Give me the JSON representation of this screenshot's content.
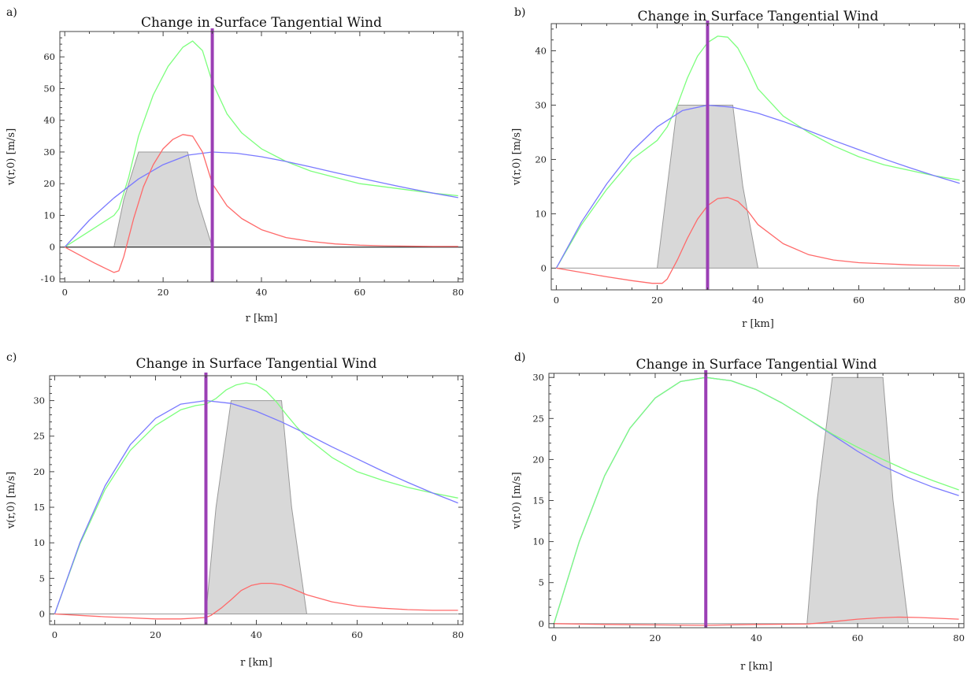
{
  "colors": {
    "green": "#7dff7d",
    "blue": "#7a7aff",
    "red": "#ff6a6a",
    "purple": "#9b3fb5",
    "shade_fill": "#d8d8d8",
    "shade_edge": "#9a9a9a"
  },
  "chart_data": [
    {
      "panel": "a)",
      "type": "line",
      "title": "Change in Surface Tangential Wind",
      "xlabel": "r  [km]",
      "ylabel": "v(r,0)  [m/s]",
      "xlim": [
        -1,
        81
      ],
      "ylim": [
        -11,
        68
      ],
      "xticks": [
        0,
        20,
        40,
        60,
        80
      ],
      "yticks": [
        -10,
        0,
        10,
        20,
        30,
        40,
        50,
        60
      ],
      "vline": 30,
      "zero_line": true,
      "shaded_region": {
        "x": [
          0,
          10,
          12,
          15,
          25,
          27,
          30,
          80
        ],
        "y": [
          0,
          0,
          15,
          30,
          30,
          15,
          0,
          0
        ]
      },
      "series": [
        {
          "color": "green",
          "x": [
            0,
            5,
            10,
            11,
            13,
            15,
            18,
            21,
            24,
            26,
            28,
            30,
            33,
            36,
            40,
            45,
            50,
            55,
            60,
            65,
            70,
            75,
            80
          ],
          "y": [
            0,
            5,
            10,
            12,
            22,
            35,
            48,
            57,
            63,
            65,
            62,
            52,
            42,
            36,
            31,
            27,
            24,
            22,
            20,
            19,
            18,
            17,
            16.2
          ]
        },
        {
          "color": "blue",
          "x": [
            0,
            5,
            10,
            15,
            20,
            25,
            30,
            35,
            40,
            45,
            50,
            55,
            60,
            65,
            70,
            75,
            80
          ],
          "y": [
            0,
            8.5,
            15.5,
            21.5,
            26,
            29,
            30,
            29.6,
            28.5,
            27,
            25.3,
            23.5,
            21.8,
            20.1,
            18.5,
            17,
            15.6
          ]
        },
        {
          "color": "red",
          "x": [
            0,
            3,
            6,
            8,
            10,
            11,
            12,
            14,
            16,
            18,
            20,
            22,
            24,
            26,
            28,
            30,
            33,
            36,
            40,
            45,
            50,
            55,
            60,
            65,
            70,
            75,
            80
          ],
          "y": [
            0,
            -2.5,
            -5,
            -6.5,
            -8,
            -7.5,
            -3,
            9,
            19,
            26,
            31,
            34,
            35.5,
            35,
            30,
            20,
            13,
            9,
            5.5,
            3,
            1.8,
            1,
            0.6,
            0.4,
            0.3,
            0.2,
            0.2
          ]
        }
      ]
    },
    {
      "panel": "b)",
      "type": "line",
      "title": "Change in Surface Tangential Wind",
      "xlabel": "r  [km]",
      "ylabel": "v(r,0)  [m/s]",
      "xlim": [
        -1,
        81
      ],
      "ylim": [
        -4,
        45
      ],
      "xticks": [
        0,
        20,
        40,
        60,
        80
      ],
      "yticks": [
        0,
        10,
        20,
        30,
        40
      ],
      "vline": 30,
      "zero_line": false,
      "shaded_region": {
        "x": [
          0,
          20,
          22,
          24,
          35,
          37,
          40,
          80
        ],
        "y": [
          0,
          0,
          15,
          30,
          30,
          15,
          0,
          0
        ]
      },
      "series": [
        {
          "color": "green",
          "x": [
            0,
            5,
            10,
            15,
            20,
            22,
            24,
            26,
            28,
            30,
            32,
            34,
            36,
            38,
            40,
            45,
            50,
            55,
            60,
            65,
            70,
            75,
            80
          ],
          "y": [
            0,
            8,
            14.5,
            20,
            23.5,
            26,
            30,
            35,
            39,
            41.5,
            42.7,
            42.5,
            40.5,
            37,
            33,
            28,
            25,
            22.5,
            20.5,
            19,
            18,
            17,
            16.2
          ]
        },
        {
          "color": "blue",
          "x": [
            0,
            5,
            10,
            15,
            20,
            25,
            30,
            35,
            40,
            45,
            50,
            55,
            60,
            65,
            70,
            75,
            80
          ],
          "y": [
            0,
            8.5,
            15.5,
            21.5,
            26,
            29,
            30,
            29.6,
            28.5,
            27,
            25.3,
            23.5,
            21.8,
            20.1,
            18.5,
            17,
            15.6
          ]
        },
        {
          "color": "red",
          "x": [
            0,
            5,
            10,
            15,
            19,
            21,
            22,
            24,
            26,
            28,
            30,
            32,
            34,
            36,
            38,
            40,
            45,
            50,
            55,
            60,
            65,
            70,
            75,
            80
          ],
          "y": [
            0,
            -0.8,
            -1.6,
            -2.3,
            -2.8,
            -2.8,
            -2,
            1.5,
            5.5,
            9,
            11.5,
            12.8,
            13,
            12.3,
            10.5,
            8,
            4.5,
            2.5,
            1.5,
            1,
            0.8,
            0.6,
            0.5,
            0.4
          ]
        }
      ]
    },
    {
      "panel": "c)",
      "type": "line",
      "title": "Change in Surface Tangential Wind",
      "xlabel": "r  [km]",
      "ylabel": "v(r,0)  [m/s]",
      "xlim": [
        -1,
        81
      ],
      "ylim": [
        -1.5,
        33.5
      ],
      "xticks": [
        0,
        20,
        40,
        60,
        80
      ],
      "yticks": [
        0,
        5,
        10,
        15,
        20,
        25,
        30
      ],
      "vline": 30,
      "zero_line": false,
      "shaded_region": {
        "x": [
          0,
          30,
          32,
          35,
          45,
          47,
          50,
          80
        ],
        "y": [
          0,
          0,
          15,
          30,
          30,
          15,
          0,
          0
        ]
      },
      "series": [
        {
          "color": "green",
          "x": [
            0,
            5,
            10,
            15,
            20,
            25,
            28,
            30,
            32,
            34,
            36,
            38,
            40,
            42,
            44,
            46,
            48,
            50,
            55,
            60,
            65,
            70,
            75,
            80
          ],
          "y": [
            0,
            9.8,
            17.5,
            23,
            26.5,
            28.7,
            29.3,
            29.5,
            30.3,
            31.5,
            32.2,
            32.5,
            32.2,
            31.3,
            29.8,
            28,
            26.3,
            24.8,
            22,
            20,
            18.8,
            17.8,
            17,
            16.3
          ]
        },
        {
          "color": "blue",
          "x": [
            0,
            5,
            10,
            15,
            20,
            25,
            30,
            35,
            40,
            45,
            50,
            55,
            60,
            65,
            70,
            75,
            80
          ],
          "y": [
            0,
            10,
            18,
            23.8,
            27.5,
            29.5,
            30,
            29.6,
            28.5,
            27,
            25.3,
            23.5,
            21.8,
            20.1,
            18.5,
            17,
            15.6
          ]
        },
        {
          "color": "red",
          "x": [
            0,
            5,
            10,
            15,
            20,
            25,
            29,
            30,
            31,
            33,
            35,
            37,
            39,
            41,
            43,
            45,
            47,
            50,
            55,
            60,
            65,
            70,
            75,
            80
          ],
          "y": [
            0,
            -0.2,
            -0.4,
            -0.55,
            -0.7,
            -0.7,
            -0.55,
            -0.5,
            -0.2,
            0.8,
            2,
            3.3,
            4,
            4.3,
            4.3,
            4.1,
            3.6,
            2.7,
            1.7,
            1.1,
            0.8,
            0.6,
            0.5,
            0.5
          ]
        }
      ]
    },
    {
      "panel": "d)",
      "type": "line",
      "title": "Change in Surface Tangential Wind",
      "xlabel": "r  [km]",
      "ylabel": "v(r,0)  [m/s]",
      "xlim": [
        -1,
        81
      ],
      "ylim": [
        -0.5,
        30.5
      ],
      "xticks": [
        0,
        20,
        40,
        60,
        80
      ],
      "yticks": [
        0,
        5,
        10,
        15,
        20,
        25,
        30
      ],
      "vline": 30,
      "zero_line": false,
      "shaded_region": {
        "x": [
          0,
          50,
          52,
          55,
          65,
          67,
          70,
          80
        ],
        "y": [
          0,
          0,
          15,
          30,
          30,
          15,
          0,
          0
        ]
      },
      "series": [
        {
          "color": "blue",
          "x": [
            0,
            5,
            10,
            15,
            20,
            25,
            30,
            35,
            40,
            45,
            50,
            55,
            60,
            65,
            70,
            75,
            80
          ],
          "y": [
            0,
            10,
            18,
            23.8,
            27.5,
            29.5,
            30,
            29.6,
            28.5,
            26.9,
            25,
            23,
            21,
            19.2,
            17.8,
            16.6,
            15.6
          ]
        },
        {
          "color": "green",
          "x": [
            0,
            5,
            10,
            15,
            20,
            25,
            30,
            35,
            40,
            45,
            50,
            55,
            60,
            65,
            70,
            75,
            80
          ],
          "y": [
            0,
            10,
            18,
            23.8,
            27.5,
            29.5,
            30,
            29.6,
            28.5,
            26.9,
            25,
            23.1,
            21.5,
            20,
            18.6,
            17.4,
            16.3
          ]
        },
        {
          "color": "red",
          "x": [
            0,
            10,
            20,
            30,
            40,
            50,
            53,
            56,
            60,
            64,
            68,
            72,
            76,
            80
          ],
          "y": [
            0,
            -0.1,
            -0.15,
            -0.2,
            -0.1,
            -0.05,
            0.1,
            0.3,
            0.55,
            0.7,
            0.8,
            0.75,
            0.65,
            0.55
          ]
        }
      ]
    }
  ]
}
